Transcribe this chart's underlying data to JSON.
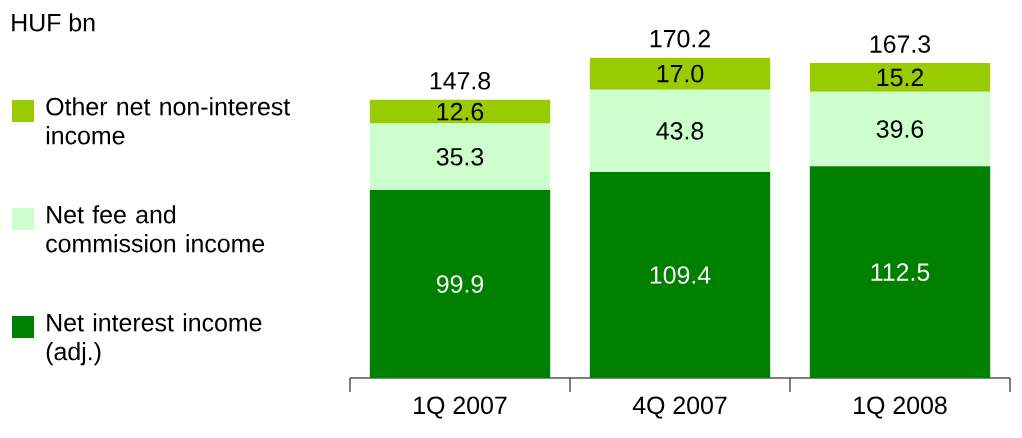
{
  "chart_data": {
    "type": "bar",
    "stacked": true,
    "annotations": [
      "HUF bn"
    ],
    "categories": [
      "1Q 2007",
      "4Q 2007",
      "1Q 2008"
    ],
    "series": [
      {
        "name": "Net interest income (adj.)",
        "color": "#008000",
        "values": [
          99.9,
          109.4,
          112.5
        ],
        "value_labels": [
          "99.9",
          "109.4",
          "112.5"
        ]
      },
      {
        "name": "Net fee and commission income",
        "color": "#ccffcc",
        "values": [
          35.3,
          43.8,
          39.6
        ],
        "value_labels": [
          "35.3",
          "43.8",
          "39.6"
        ]
      },
      {
        "name": "Other net non-interest income",
        "color": "#99cc00",
        "values": [
          12.6,
          17.0,
          15.2
        ],
        "value_labels": [
          "12.6",
          "17.0",
          "15.2"
        ]
      }
    ],
    "totals": [
      "147.8",
      "170.2",
      "167.3"
    ],
    "legend": "left"
  }
}
